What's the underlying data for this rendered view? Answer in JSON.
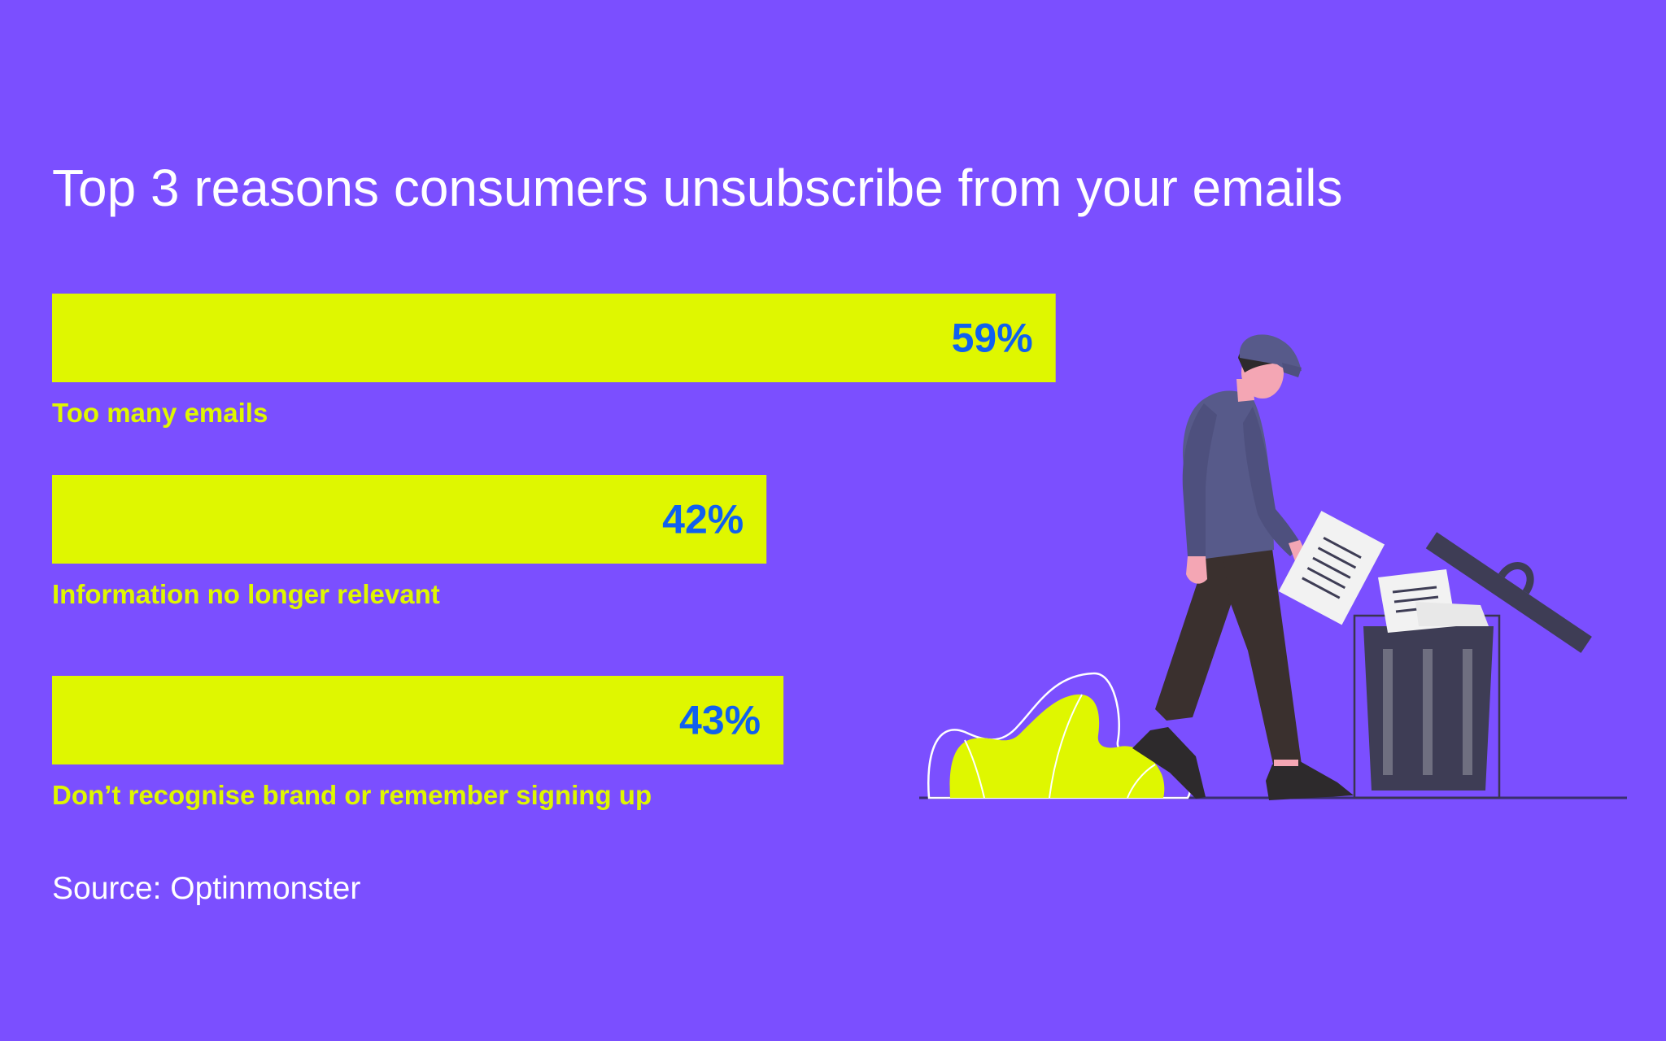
{
  "title": "Top 3 reasons consumers unsubscribe from your emails",
  "source": "Source: Optinmonster",
  "colors": {
    "background": "#7b4fff",
    "bar": "#dff700",
    "value_text": "#1060ef",
    "category_text": "#dff700",
    "title_text": "#ffffff"
  },
  "chart_data": {
    "type": "bar",
    "orientation": "horizontal",
    "title": "Top 3 reasons consumers unsubscribe from your emails",
    "categories": [
      "Too many emails",
      "Information no longer relevant",
      "Don’t recognise brand or remember signing up"
    ],
    "values": [
      59,
      42,
      43
    ],
    "value_labels": [
      "59%",
      "42%",
      "43%"
    ],
    "unit": "%",
    "xlabel": "",
    "ylabel": "",
    "grid": false,
    "legend": "none"
  }
}
